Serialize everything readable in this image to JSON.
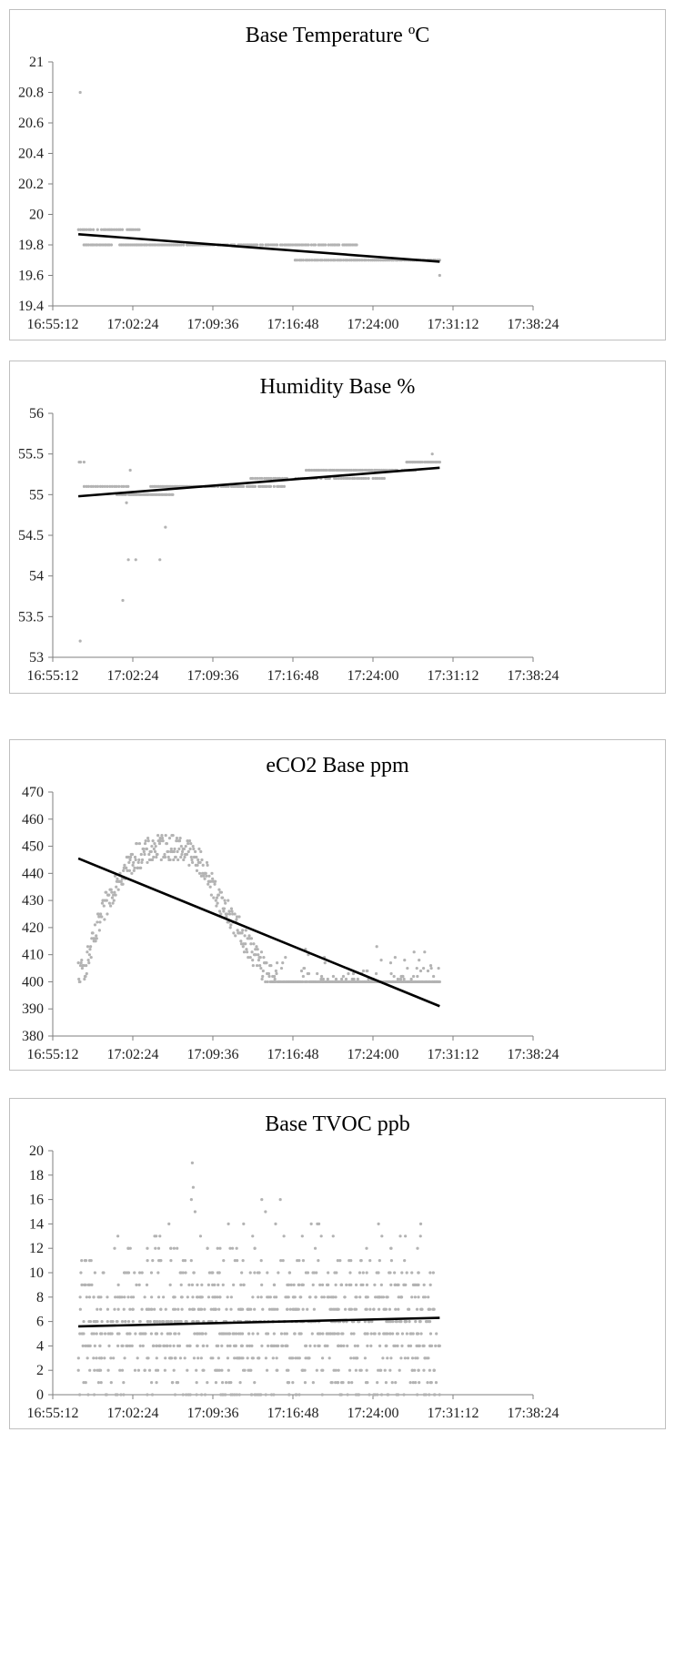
{
  "chart_data": [
    {
      "type": "scatter",
      "title": "Base Temperature ºC",
      "xlabel": "",
      "ylabel": "",
      "x_tick_labels": [
        "16:55:12",
        "17:02:24",
        "17:09:36",
        "17:16:48",
        "17:24:00",
        "17:31:12",
        "17:38:24"
      ],
      "y_tick_labels": [
        "19.4",
        "19.6",
        "19.8",
        "20",
        "20.2",
        "20.4",
        "20.6",
        "20.8",
        "21"
      ],
      "xlim": [
        "16:55:12",
        "17:38:24"
      ],
      "ylim": [
        19.4,
        21
      ],
      "grid": false,
      "legend": "none",
      "point_color": "#b3b3b3",
      "trend_color": "#000000",
      "data_range": [
        "16:57:30",
        "17:30:00"
      ],
      "segments": [
        {
          "x_start": "16:57:30",
          "x_end": "17:03:00",
          "y": 19.9,
          "count": 30
        },
        {
          "x_start": "16:58:00",
          "x_end": "17:22:30",
          "y": 19.8,
          "count": 160
        },
        {
          "x_start": "17:17:00",
          "x_end": "17:30:00",
          "y": 19.7,
          "count": 70
        }
      ],
      "outliers": [
        {
          "x": "16:57:40",
          "y": 20.8
        },
        {
          "x": "17:30:00",
          "y": 19.6
        }
      ],
      "trendline": [
        {
          "x": "16:57:30",
          "y": 19.87
        },
        {
          "x": "17:30:00",
          "y": 19.69
        }
      ]
    },
    {
      "type": "scatter",
      "title": "Humidity Base %",
      "xlabel": "",
      "ylabel": "",
      "x_tick_labels": [
        "16:55:12",
        "17:02:24",
        "17:09:36",
        "17:16:48",
        "17:24:00",
        "17:31:12",
        "17:38:24"
      ],
      "y_tick_labels": [
        "53",
        "53.5",
        "54",
        "54.5",
        "55",
        "55.5",
        "56"
      ],
      "xlim": [
        "16:55:12",
        "17:38:24"
      ],
      "ylim": [
        53,
        56
      ],
      "grid": false,
      "legend": "none",
      "point_color": "#b3b3b3",
      "trend_color": "#000000",
      "data_range": [
        "16:57:30",
        "17:30:00"
      ],
      "segments": [
        {
          "x_start": "16:57:30",
          "x_end": "16:58:00",
          "y": 55.4,
          "count": 6
        },
        {
          "x_start": "16:58:00",
          "x_end": "17:02:00",
          "y": 55.1,
          "count": 20
        },
        {
          "x_start": "17:01:00",
          "x_end": "17:06:00",
          "y": 55.0,
          "count": 40
        },
        {
          "x_start": "17:04:00",
          "x_end": "17:16:00",
          "y": 55.1,
          "count": 80
        },
        {
          "x_start": "17:13:00",
          "x_end": "17:25:00",
          "y": 55.2,
          "count": 60
        },
        {
          "x_start": "17:18:00",
          "x_end": "17:28:00",
          "y": 55.3,
          "count": 60
        },
        {
          "x_start": "17:27:00",
          "x_end": "17:30:00",
          "y": 55.4,
          "count": 30
        }
      ],
      "outliers": [
        {
          "x": "16:57:40",
          "y": 53.2
        },
        {
          "x": "17:01:30",
          "y": 53.7
        },
        {
          "x": "17:02:00",
          "y": 54.2
        },
        {
          "x": "17:02:40",
          "y": 54.2
        },
        {
          "x": "17:04:50",
          "y": 54.2
        },
        {
          "x": "17:05:20",
          "y": 54.6
        },
        {
          "x": "17:01:50",
          "y": 54.9
        },
        {
          "x": "17:02:10",
          "y": 55.3
        },
        {
          "x": "17:29:20",
          "y": 55.5
        }
      ],
      "trendline": [
        {
          "x": "16:57:30",
          "y": 54.98
        },
        {
          "x": "17:30:00",
          "y": 55.33
        }
      ]
    },
    {
      "type": "scatter",
      "title": "eCO2 Base ppm",
      "xlabel": "",
      "ylabel": "",
      "x_tick_labels": [
        "16:55:12",
        "17:02:24",
        "17:09:36",
        "17:16:48",
        "17:24:00",
        "17:31:12",
        "17:38:24"
      ],
      "y_tick_labels": [
        "380",
        "390",
        "400",
        "410",
        "420",
        "430",
        "440",
        "450",
        "460",
        "470"
      ],
      "xlim": [
        "16:55:12",
        "17:38:24"
      ],
      "ylim": [
        380,
        470
      ],
      "grid": false,
      "legend": "none",
      "point_color": "#b3b3b3",
      "trend_color": "#000000",
      "data_range": [
        "16:57:30",
        "17:30:00"
      ],
      "profile": [
        {
          "x": "16:57:30",
          "y": 400
        },
        {
          "x": "16:58:30",
          "y": 410
        },
        {
          "x": "16:59:40",
          "y": 425
        },
        {
          "x": "17:01:00",
          "y": 438
        },
        {
          "x": "17:02:40",
          "y": 446
        },
        {
          "x": "17:05:00",
          "y": 450
        },
        {
          "x": "17:07:00",
          "y": 449
        },
        {
          "x": "17:08:30",
          "y": 444
        },
        {
          "x": "17:10:00",
          "y": 432
        },
        {
          "x": "17:11:30",
          "y": 422
        },
        {
          "x": "17:13:00",
          "y": 412
        },
        {
          "x": "17:14:30",
          "y": 403
        },
        {
          "x": "17:15:30",
          "y": 400
        },
        {
          "x": "17:30:00",
          "y": 400
        }
      ],
      "spread": 5,
      "tail_noise_max": 14,
      "point_count": 650,
      "trendline": [
        {
          "x": "16:57:30",
          "y": 445.5
        },
        {
          "x": "17:30:00",
          "y": 391
        }
      ]
    },
    {
      "type": "scatter",
      "title": "Base TVOC ppb",
      "xlabel": "",
      "ylabel": "",
      "x_tick_labels": [
        "16:55:12",
        "17:02:24",
        "17:09:36",
        "17:16:48",
        "17:24:00",
        "17:31:12",
        "17:38:24"
      ],
      "y_tick_labels": [
        "0",
        "2",
        "4",
        "6",
        "8",
        "10",
        "12",
        "14",
        "16",
        "18",
        "20"
      ],
      "xlim": [
        "16:55:12",
        "17:38:24"
      ],
      "ylim": [
        0,
        20
      ],
      "grid": false,
      "legend": "none",
      "point_color": "#b3b3b3",
      "trend_color": "#000000",
      "data_range": [
        "16:57:30",
        "17:30:00"
      ],
      "value_distribution": [
        {
          "y": 0,
          "count": 70
        },
        {
          "y": 1,
          "count": 50
        },
        {
          "y": 2,
          "count": 70
        },
        {
          "y": 3,
          "count": 80
        },
        {
          "y": 4,
          "count": 110
        },
        {
          "y": 5,
          "count": 130
        },
        {
          "y": 6,
          "count": 140
        },
        {
          "y": 7,
          "count": 110
        },
        {
          "y": 8,
          "count": 100
        },
        {
          "y": 9,
          "count": 70
        },
        {
          "y": 10,
          "count": 60
        },
        {
          "y": 11,
          "count": 35
        },
        {
          "y": 12,
          "count": 25
        },
        {
          "y": 13,
          "count": 14
        },
        {
          "y": 14,
          "count": 6
        }
      ],
      "outliers": [
        {
          "x": "17:07:45",
          "y": 19
        },
        {
          "x": "17:07:50",
          "y": 17
        },
        {
          "x": "17:07:40",
          "y": 16
        },
        {
          "x": "17:08:00",
          "y": 15
        },
        {
          "x": "17:11:00",
          "y": 14
        },
        {
          "x": "17:14:00",
          "y": 16
        },
        {
          "x": "17:14:20",
          "y": 15
        },
        {
          "x": "17:15:40",
          "y": 16
        },
        {
          "x": "17:19:00",
          "y": 14
        },
        {
          "x": "17:24:30",
          "y": 14
        }
      ],
      "trendline": [
        {
          "x": "16:57:30",
          "y": 5.6
        },
        {
          "x": "17:30:00",
          "y": 6.3
        }
      ]
    }
  ]
}
